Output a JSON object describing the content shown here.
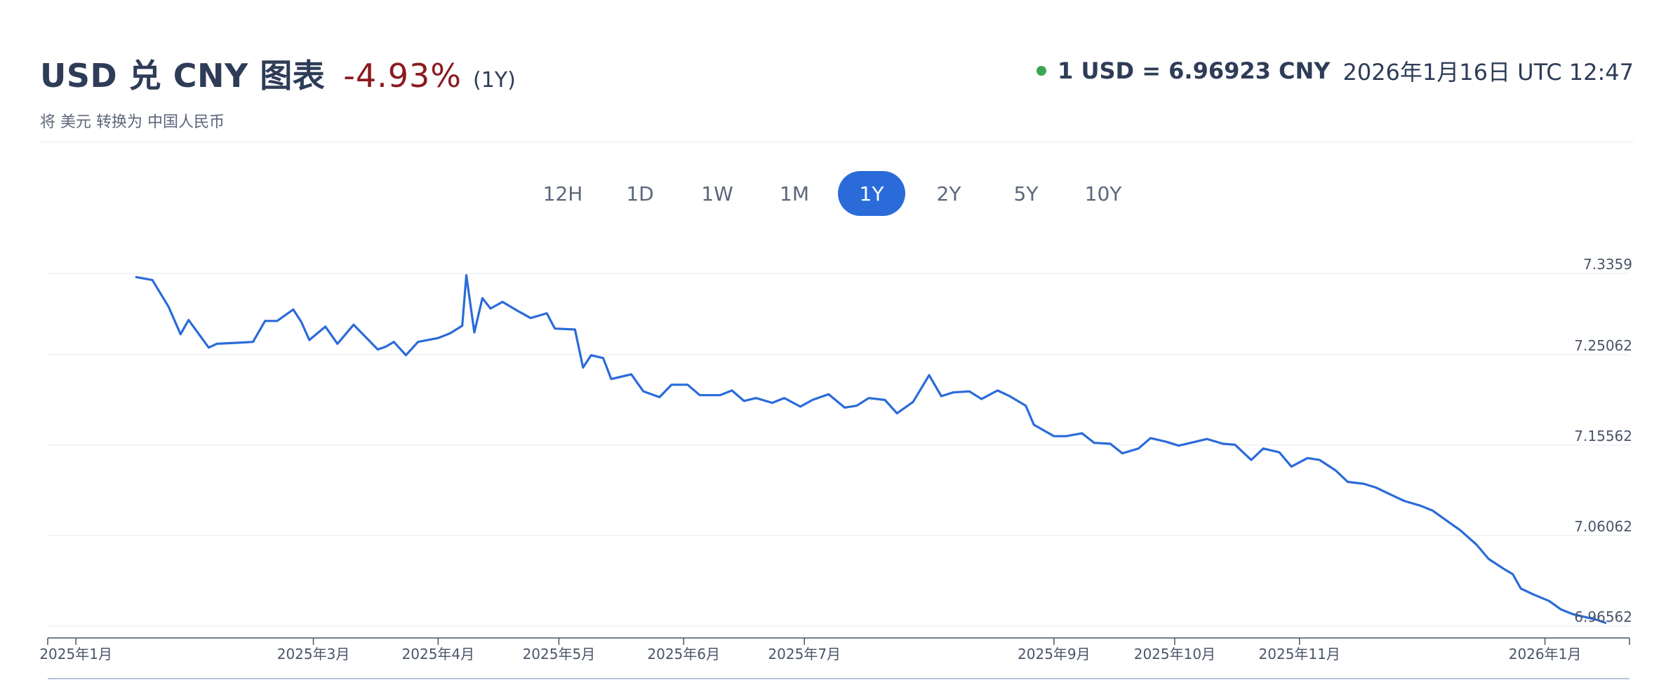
{
  "header": {
    "title": "USD 兑 CNY 图表",
    "change": "-4.93%",
    "period": "(1Y)",
    "subtitle": "将 美元 转换为 中国人民币"
  },
  "rate": {
    "value": "1 USD = 6.96923 CNY",
    "timestamp": "2026年1月16日 UTC 12:47"
  },
  "tabs": [
    {
      "label": "12H",
      "active": false
    },
    {
      "label": "1D",
      "active": false
    },
    {
      "label": "1W",
      "active": false
    },
    {
      "label": "1M",
      "active": false
    },
    {
      "label": "1Y",
      "active": true
    },
    {
      "label": "2Y",
      "active": false
    },
    {
      "label": "5Y",
      "active": false
    },
    {
      "label": "10Y",
      "active": false
    }
  ],
  "colors": {
    "line": "#2a6bd9",
    "accent": "#2a6bd9",
    "negative": "#8b1a1f",
    "live": "#3aa655"
  },
  "chart_data": {
    "type": "line",
    "title": "",
    "xlabel": "",
    "ylabel": "",
    "ylim": [
      6.96923,
      7.3359
    ],
    "yticks": [
      7.3359,
      7.25062,
      7.15562,
      7.06062,
      6.96562
    ],
    "ytick_labels": [
      "7.3359",
      "7.25062",
      "7.15562",
      "7.06062",
      "6.96562"
    ],
    "grid": true,
    "xticks": [
      {
        "date": "2025-01-01",
        "label": "2025年1月"
      },
      {
        "date": "2025-03-01",
        "label": "2025年3月"
      },
      {
        "date": "2025-04-01",
        "label": "2025年4月"
      },
      {
        "date": "2025-05-01",
        "label": "2025年5月"
      },
      {
        "date": "2025-06-01",
        "label": "2025年6月"
      },
      {
        "date": "2025-07-01",
        "label": "2025年7月"
      },
      {
        "date": "2025-09-01",
        "label": "2025年9月"
      },
      {
        "date": "2025-10-01",
        "label": "2025年10月"
      },
      {
        "date": "2025-11-01",
        "label": "2025年11月"
      },
      {
        "date": "2026-01-01",
        "label": "2026年1月"
      }
    ],
    "series": [
      {
        "values": [
          [
            "2025-01-16",
            7.332
          ],
          [
            "2025-01-20",
            7.329
          ],
          [
            "2025-01-24",
            7.301
          ],
          [
            "2025-01-27",
            7.272
          ],
          [
            "2025-01-29",
            7.287
          ],
          [
            "2025-02-03",
            7.258
          ],
          [
            "2025-02-05",
            7.262
          ],
          [
            "2025-02-10",
            7.263
          ],
          [
            "2025-02-14",
            7.264
          ],
          [
            "2025-02-17",
            7.286
          ],
          [
            "2025-02-20",
            7.286
          ],
          [
            "2025-02-24",
            7.298
          ],
          [
            "2025-02-26",
            7.285
          ],
          [
            "2025-02-28",
            7.266
          ],
          [
            "2025-03-04",
            7.28
          ],
          [
            "2025-03-07",
            7.262
          ],
          [
            "2025-03-11",
            7.282
          ],
          [
            "2025-03-14",
            7.269
          ],
          [
            "2025-03-17",
            7.256
          ],
          [
            "2025-03-19",
            7.259
          ],
          [
            "2025-03-21",
            7.264
          ],
          [
            "2025-03-24",
            7.25
          ],
          [
            "2025-03-27",
            7.264
          ],
          [
            "2025-04-01",
            7.268
          ],
          [
            "2025-04-04",
            7.273
          ],
          [
            "2025-04-07",
            7.281
          ],
          [
            "2025-04-08",
            7.334
          ],
          [
            "2025-04-10",
            7.274
          ],
          [
            "2025-04-12",
            7.31
          ],
          [
            "2025-04-14",
            7.299
          ],
          [
            "2025-04-17",
            7.306
          ],
          [
            "2025-04-21",
            7.296
          ],
          [
            "2025-04-24",
            7.289
          ],
          [
            "2025-04-28",
            7.294
          ],
          [
            "2025-04-30",
            7.278
          ],
          [
            "2025-05-05",
            7.277
          ],
          [
            "2025-05-07",
            7.237
          ],
          [
            "2025-05-09",
            7.25
          ],
          [
            "2025-05-12",
            7.247
          ],
          [
            "2025-05-14",
            7.225
          ],
          [
            "2025-05-19",
            7.23
          ],
          [
            "2025-05-22",
            7.212
          ],
          [
            "2025-05-26",
            7.206
          ],
          [
            "2025-05-29",
            7.219
          ],
          [
            "2025-06-02",
            7.219
          ],
          [
            "2025-06-05",
            7.208
          ],
          [
            "2025-06-10",
            7.208
          ],
          [
            "2025-06-13",
            7.213
          ],
          [
            "2025-06-16",
            7.202
          ],
          [
            "2025-06-19",
            7.205
          ],
          [
            "2025-06-23",
            7.2
          ],
          [
            "2025-06-26",
            7.205
          ],
          [
            "2025-06-30",
            7.196
          ],
          [
            "2025-07-03",
            7.203
          ],
          [
            "2025-07-07",
            7.209
          ],
          [
            "2025-07-11",
            7.195
          ],
          [
            "2025-07-14",
            7.197
          ],
          [
            "2025-07-17",
            7.205
          ],
          [
            "2025-07-21",
            7.203
          ],
          [
            "2025-07-24",
            7.189
          ],
          [
            "2025-07-28",
            7.201
          ],
          [
            "2025-08-01",
            7.229
          ],
          [
            "2025-08-04",
            7.207
          ],
          [
            "2025-08-07",
            7.211
          ],
          [
            "2025-08-11",
            7.212
          ],
          [
            "2025-08-14",
            7.204
          ],
          [
            "2025-08-18",
            7.213
          ],
          [
            "2025-08-21",
            7.207
          ],
          [
            "2025-08-25",
            7.197
          ],
          [
            "2025-08-27",
            7.177
          ],
          [
            "2025-09-01",
            7.165
          ],
          [
            "2025-09-04",
            7.165
          ],
          [
            "2025-09-08",
            7.168
          ],
          [
            "2025-09-11",
            7.158
          ],
          [
            "2025-09-15",
            7.157
          ],
          [
            "2025-09-18",
            7.147
          ],
          [
            "2025-09-22",
            7.152
          ],
          [
            "2025-09-25",
            7.163
          ],
          [
            "2025-09-29",
            7.159
          ],
          [
            "2025-10-02",
            7.155
          ],
          [
            "2025-10-06",
            7.159
          ],
          [
            "2025-10-09",
            7.162
          ],
          [
            "2025-10-13",
            7.157
          ],
          [
            "2025-10-16",
            7.156
          ],
          [
            "2025-10-20",
            7.14
          ],
          [
            "2025-10-23",
            7.152
          ],
          [
            "2025-10-27",
            7.148
          ],
          [
            "2025-10-30",
            7.133
          ],
          [
            "2025-11-03",
            7.142
          ],
          [
            "2025-11-06",
            7.14
          ],
          [
            "2025-11-10",
            7.129
          ],
          [
            "2025-11-13",
            7.117
          ],
          [
            "2025-11-17",
            7.115
          ],
          [
            "2025-11-20",
            7.111
          ],
          [
            "2025-11-24",
            7.103
          ],
          [
            "2025-11-27",
            7.097
          ],
          [
            "2025-12-01",
            7.092
          ],
          [
            "2025-12-04",
            7.087
          ],
          [
            "2025-12-08",
            7.075
          ],
          [
            "2025-12-11",
            7.066
          ],
          [
            "2025-12-15",
            7.051
          ],
          [
            "2025-12-18",
            7.036
          ],
          [
            "2025-12-22",
            7.025
          ],
          [
            "2025-12-24",
            7.02
          ],
          [
            "2025-12-26",
            7.005
          ],
          [
            "2025-12-29",
            6.999
          ],
          [
            "2026-01-02",
            6.992
          ],
          [
            "2026-01-05",
            6.983
          ],
          [
            "2026-01-08",
            6.978
          ],
          [
            "2026-01-12",
            6.974
          ],
          [
            "2026-01-14",
            6.972
          ],
          [
            "2026-01-16",
            6.969
          ]
        ]
      }
    ]
  }
}
